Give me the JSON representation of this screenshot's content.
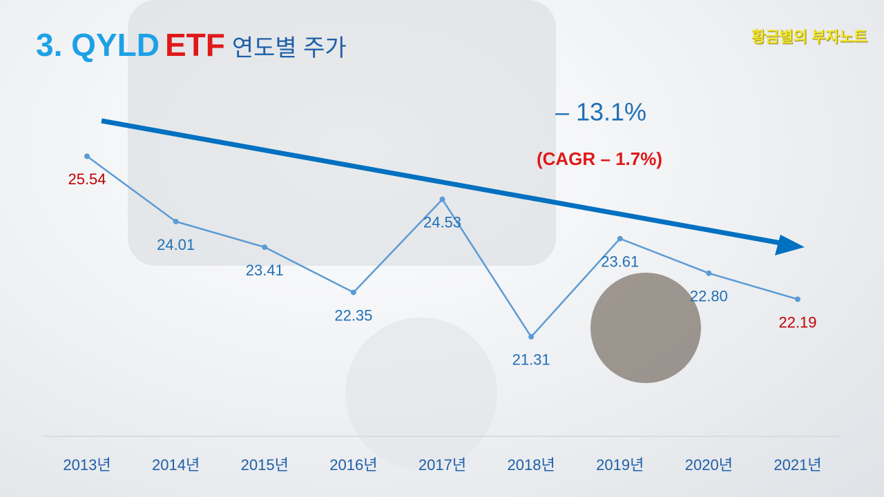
{
  "watermark": "황금별의 부자노트",
  "chart_data": {
    "type": "line",
    "title": {
      "part1": "3. QYLD",
      "part2": "ETF",
      "part3": "연도별 주가"
    },
    "annotations": {
      "change": "–  13.1%",
      "cagr": "(CAGR – 1.7%)"
    },
    "categories": [
      "2013년",
      "2014년",
      "2015년",
      "2016년",
      "2017년",
      "2018년",
      "2019년",
      "2020년",
      "2021년"
    ],
    "values": [
      25.54,
      24.01,
      23.41,
      22.35,
      24.53,
      21.31,
      23.61,
      22.8,
      22.19
    ],
    "value_labels": [
      "25.54",
      "24.01",
      "23.41",
      "22.35",
      "24.53",
      "21.31",
      "23.61",
      "22.80",
      "22.19"
    ],
    "value_label_colors": [
      "#c00000",
      "#1f6fb5",
      "#1f6fb5",
      "#1f6fb5",
      "#1f6fb5",
      "#1f6fb5",
      "#1f6fb5",
      "#1f6fb5",
      "#c00000"
    ],
    "color": "#5b9bd5",
    "ylim": [
      20.5,
      26.5
    ]
  }
}
